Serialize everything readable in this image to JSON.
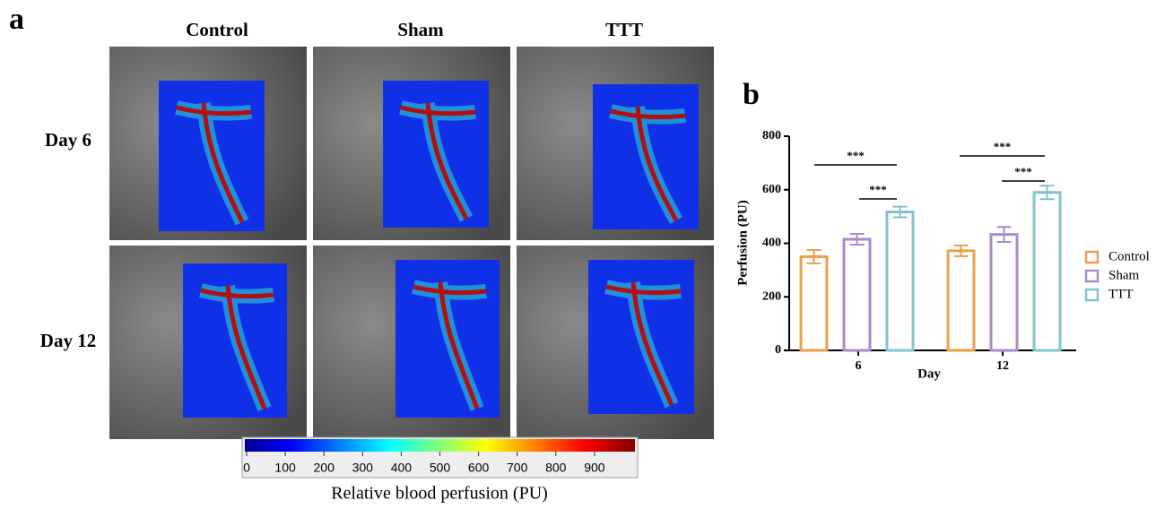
{
  "panel_a": {
    "label": "a",
    "columns": [
      "Control",
      "Sham",
      "TTT"
    ],
    "rows": [
      "Day 6",
      "Day 12"
    ],
    "colorbar": {
      "lim": [
        0,
        1000
      ],
      "ticks": [
        0,
        100,
        200,
        300,
        400,
        500,
        600,
        700,
        800,
        900
      ],
      "label": "Relative blood perfusion (PU)"
    }
  },
  "chart_data": {
    "type": "bar",
    "panel_label": "b",
    "ylabel": "Perfusion (PU)",
    "xlabel": "Day",
    "categories": [
      "6",
      "12"
    ],
    "series": [
      {
        "name": "Control",
        "color": "#e8a04c",
        "values": [
          350,
          372
        ],
        "errors": [
          25,
          20
        ]
      },
      {
        "name": "Sham",
        "color": "#a98bc9",
        "values": [
          415,
          433
        ],
        "errors": [
          20,
          28
        ]
      },
      {
        "name": "TTT",
        "color": "#7fc4d0",
        "values": [
          517,
          590
        ],
        "errors": [
          20,
          25
        ]
      }
    ],
    "ylim": [
      0,
      800
    ],
    "yticks": [
      0,
      200,
      400,
      600,
      800
    ],
    "significance": [
      "***",
      "***",
      "***",
      "***"
    ]
  }
}
